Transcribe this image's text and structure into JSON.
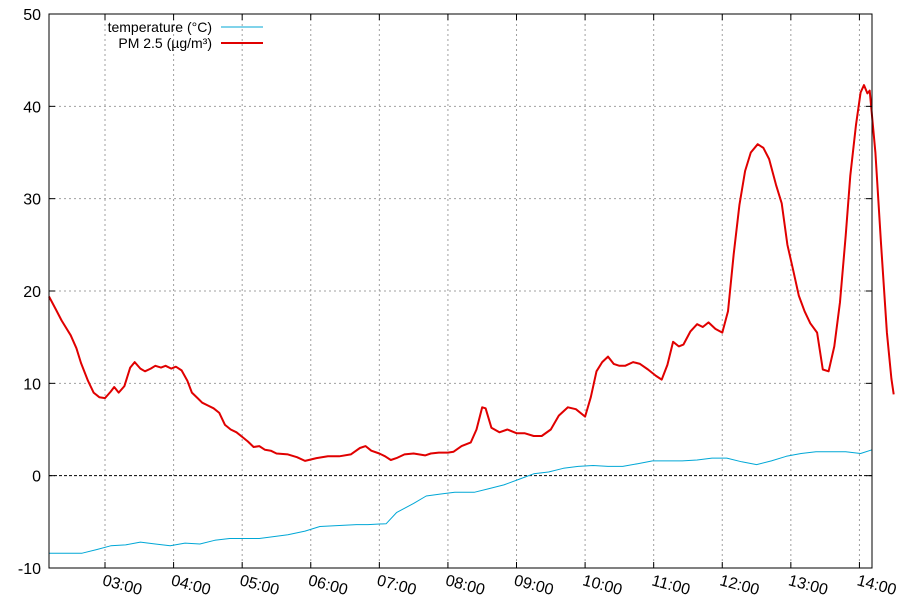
{
  "chart_data": {
    "type": "line",
    "xlim": [
      "02:11",
      "14:11"
    ],
    "ylim": [
      -10,
      50
    ],
    "grid": true,
    "legend_position": "top-left",
    "x_ticks": [
      {
        "t": "03:00",
        "label": "03:00"
      },
      {
        "t": "04:00",
        "label": "04:00"
      },
      {
        "t": "05:00",
        "label": "05:00"
      },
      {
        "t": "06:00",
        "label": "06:00"
      },
      {
        "t": "07:00",
        "label": "07:00"
      },
      {
        "t": "08:00",
        "label": "08:00"
      },
      {
        "t": "09:00",
        "label": "09:00"
      },
      {
        "t": "10:00",
        "label": "10:00"
      },
      {
        "t": "11:00",
        "label": "11:00"
      },
      {
        "t": "12:00",
        "label": "12:00"
      },
      {
        "t": "13:00",
        "label": "13:00"
      },
      {
        "t": "14:00",
        "label": "14:00"
      }
    ],
    "y_ticks": [
      -10,
      0,
      10,
      20,
      30,
      40,
      50
    ],
    "series": [
      {
        "name": "temperature (°C)",
        "color": "#00a7d6",
        "points": [
          [
            "02:11",
            -8.4
          ],
          [
            "02:40",
            -8.4
          ],
          [
            "02:53",
            -8.0
          ],
          [
            "03:05",
            -7.6
          ],
          [
            "03:18",
            -7.5
          ],
          [
            "03:31",
            -7.2
          ],
          [
            "03:44",
            -7.4
          ],
          [
            "03:57",
            -7.6
          ],
          [
            "04:10",
            -7.3
          ],
          [
            "04:23",
            -7.4
          ],
          [
            "04:36",
            -7.0
          ],
          [
            "04:49",
            -6.8
          ],
          [
            "05:15",
            -6.8
          ],
          [
            "05:40",
            -6.4
          ],
          [
            "05:55",
            -6.0
          ],
          [
            "06:08",
            -5.5
          ],
          [
            "06:25",
            -5.4
          ],
          [
            "06:40",
            -5.3
          ],
          [
            "06:50",
            -5.3
          ],
          [
            "07:06",
            -5.2
          ],
          [
            "07:15",
            -4.0
          ],
          [
            "07:30",
            -3.0
          ],
          [
            "07:41",
            -2.2
          ],
          [
            "07:53",
            -2.0
          ],
          [
            "08:06",
            -1.8
          ],
          [
            "08:23",
            -1.8
          ],
          [
            "08:36",
            -1.4
          ],
          [
            "08:49",
            -1.0
          ],
          [
            "09:02",
            -0.4
          ],
          [
            "09:15",
            0.2
          ],
          [
            "09:28",
            0.4
          ],
          [
            "09:41",
            0.8
          ],
          [
            "09:54",
            1.0
          ],
          [
            "10:07",
            1.1
          ],
          [
            "10:20",
            1.0
          ],
          [
            "10:33",
            1.0
          ],
          [
            "10:46",
            1.3
          ],
          [
            "10:59",
            1.6
          ],
          [
            "11:12",
            1.6
          ],
          [
            "11:25",
            1.6
          ],
          [
            "11:38",
            1.7
          ],
          [
            "11:51",
            1.9
          ],
          [
            "12:04",
            1.9
          ],
          [
            "12:17",
            1.5
          ],
          [
            "12:30",
            1.2
          ],
          [
            "12:43",
            1.6
          ],
          [
            "12:56",
            2.1
          ],
          [
            "13:09",
            2.4
          ],
          [
            "13:22",
            2.6
          ],
          [
            "13:35",
            2.6
          ],
          [
            "13:48",
            2.6
          ],
          [
            "14:01",
            2.4
          ],
          [
            "14:11",
            2.8
          ]
        ]
      },
      {
        "name": "PM 2.5 (µg/m³)",
        "color": "#e00000",
        "points": [
          [
            "02:11",
            19.4
          ],
          [
            "02:17",
            18.0
          ],
          [
            "02:22",
            16.8
          ],
          [
            "02:30",
            15.2
          ],
          [
            "02:35",
            13.8
          ],
          [
            "02:39",
            12.2
          ],
          [
            "02:45",
            10.3
          ],
          [
            "02:50",
            9.0
          ],
          [
            "02:55",
            8.5
          ],
          [
            "03:00",
            8.4
          ],
          [
            "03:05",
            9.1
          ],
          [
            "03:08",
            9.6
          ],
          [
            "03:12",
            9.0
          ],
          [
            "03:17",
            9.7
          ],
          [
            "03:22",
            11.7
          ],
          [
            "03:26",
            12.3
          ],
          [
            "03:31",
            11.6
          ],
          [
            "03:35",
            11.3
          ],
          [
            "03:40",
            11.6
          ],
          [
            "03:44",
            11.9
          ],
          [
            "03:49",
            11.7
          ],
          [
            "03:53",
            11.9
          ],
          [
            "03:58",
            11.6
          ],
          [
            "04:02",
            11.8
          ],
          [
            "04:07",
            11.4
          ],
          [
            "04:12",
            10.3
          ],
          [
            "04:16",
            9.0
          ],
          [
            "04:21",
            8.4
          ],
          [
            "04:25",
            7.9
          ],
          [
            "04:30",
            7.6
          ],
          [
            "04:35",
            7.3
          ],
          [
            "04:40",
            6.8
          ],
          [
            "04:45",
            5.5
          ],
          [
            "04:50",
            5.0
          ],
          [
            "04:55",
            4.7
          ],
          [
            "05:00",
            4.2
          ],
          [
            "05:05",
            3.7
          ],
          [
            "05:10",
            3.1
          ],
          [
            "05:15",
            3.2
          ],
          [
            "05:20",
            2.8
          ],
          [
            "05:25",
            2.7
          ],
          [
            "05:30",
            2.4
          ],
          [
            "05:40",
            2.3
          ],
          [
            "05:48",
            2.0
          ],
          [
            "05:55",
            1.6
          ],
          [
            "06:05",
            1.9
          ],
          [
            "06:15",
            2.1
          ],
          [
            "06:25",
            2.1
          ],
          [
            "06:35",
            2.3
          ],
          [
            "06:43",
            3.0
          ],
          [
            "06:48",
            3.2
          ],
          [
            "06:53",
            2.7
          ],
          [
            "07:00",
            2.4
          ],
          [
            "07:05",
            2.1
          ],
          [
            "07:10",
            1.7
          ],
          [
            "07:15",
            1.9
          ],
          [
            "07:22",
            2.3
          ],
          [
            "07:30",
            2.4
          ],
          [
            "07:40",
            2.2
          ],
          [
            "07:45",
            2.4
          ],
          [
            "07:52",
            2.5
          ],
          [
            "08:00",
            2.5
          ],
          [
            "08:05",
            2.6
          ],
          [
            "08:12",
            3.2
          ],
          [
            "08:20",
            3.6
          ],
          [
            "08:25",
            5.0
          ],
          [
            "08:30",
            7.4
          ],
          [
            "08:33",
            7.3
          ],
          [
            "08:38",
            5.2
          ],
          [
            "08:45",
            4.7
          ],
          [
            "08:52",
            5.0
          ],
          [
            "09:00",
            4.6
          ],
          [
            "09:07",
            4.6
          ],
          [
            "09:15",
            4.3
          ],
          [
            "09:22",
            4.3
          ],
          [
            "09:30",
            5.0
          ],
          [
            "09:37",
            6.5
          ],
          [
            "09:45",
            7.4
          ],
          [
            "09:52",
            7.2
          ],
          [
            "10:00",
            6.4
          ],
          [
            "10:05",
            8.5
          ],
          [
            "10:10",
            11.3
          ],
          [
            "10:15",
            12.3
          ],
          [
            "10:20",
            12.9
          ],
          [
            "10:25",
            12.1
          ],
          [
            "10:30",
            11.9
          ],
          [
            "10:35",
            11.9
          ],
          [
            "10:42",
            12.3
          ],
          [
            "10:48",
            12.1
          ],
          [
            "10:55",
            11.5
          ],
          [
            "11:02",
            10.8
          ],
          [
            "11:07",
            10.4
          ],
          [
            "11:12",
            12.0
          ],
          [
            "11:17",
            14.5
          ],
          [
            "11:22",
            14.0
          ],
          [
            "11:26",
            14.2
          ],
          [
            "11:32",
            15.6
          ],
          [
            "11:38",
            16.4
          ],
          [
            "11:43",
            16.1
          ],
          [
            "11:48",
            16.6
          ],
          [
            "11:54",
            15.9
          ],
          [
            "12:00",
            15.5
          ],
          [
            "12:05",
            17.8
          ],
          [
            "12:10",
            24.0
          ],
          [
            "12:15",
            29.3
          ],
          [
            "12:20",
            33.0
          ],
          [
            "12:25",
            35.0
          ],
          [
            "12:31",
            35.9
          ],
          [
            "12:36",
            35.5
          ],
          [
            "12:41",
            34.3
          ],
          [
            "12:47",
            31.5
          ],
          [
            "12:52",
            29.5
          ],
          [
            "12:57",
            25.0
          ],
          [
            "13:02",
            22.3
          ],
          [
            "13:07",
            19.5
          ],
          [
            "13:12",
            17.8
          ],
          [
            "13:17",
            16.5
          ],
          [
            "13:23",
            15.5
          ],
          [
            "13:28",
            11.5
          ],
          [
            "13:33",
            11.3
          ],
          [
            "13:38",
            14.0
          ],
          [
            "13:43",
            18.8
          ],
          [
            "13:48",
            26.0
          ],
          [
            "13:52",
            32.5
          ],
          [
            "13:57",
            38.0
          ],
          [
            "14:01",
            41.5
          ],
          [
            "14:04",
            42.3
          ],
          [
            "14:07",
            41.4
          ],
          [
            "14:09",
            41.7
          ],
          [
            "14:14",
            35.0
          ],
          [
            "14:19",
            25.0
          ],
          [
            "14:24",
            15.5
          ],
          [
            "14:28",
            10.5
          ],
          [
            "14:30",
            8.8
          ]
        ]
      }
    ]
  }
}
